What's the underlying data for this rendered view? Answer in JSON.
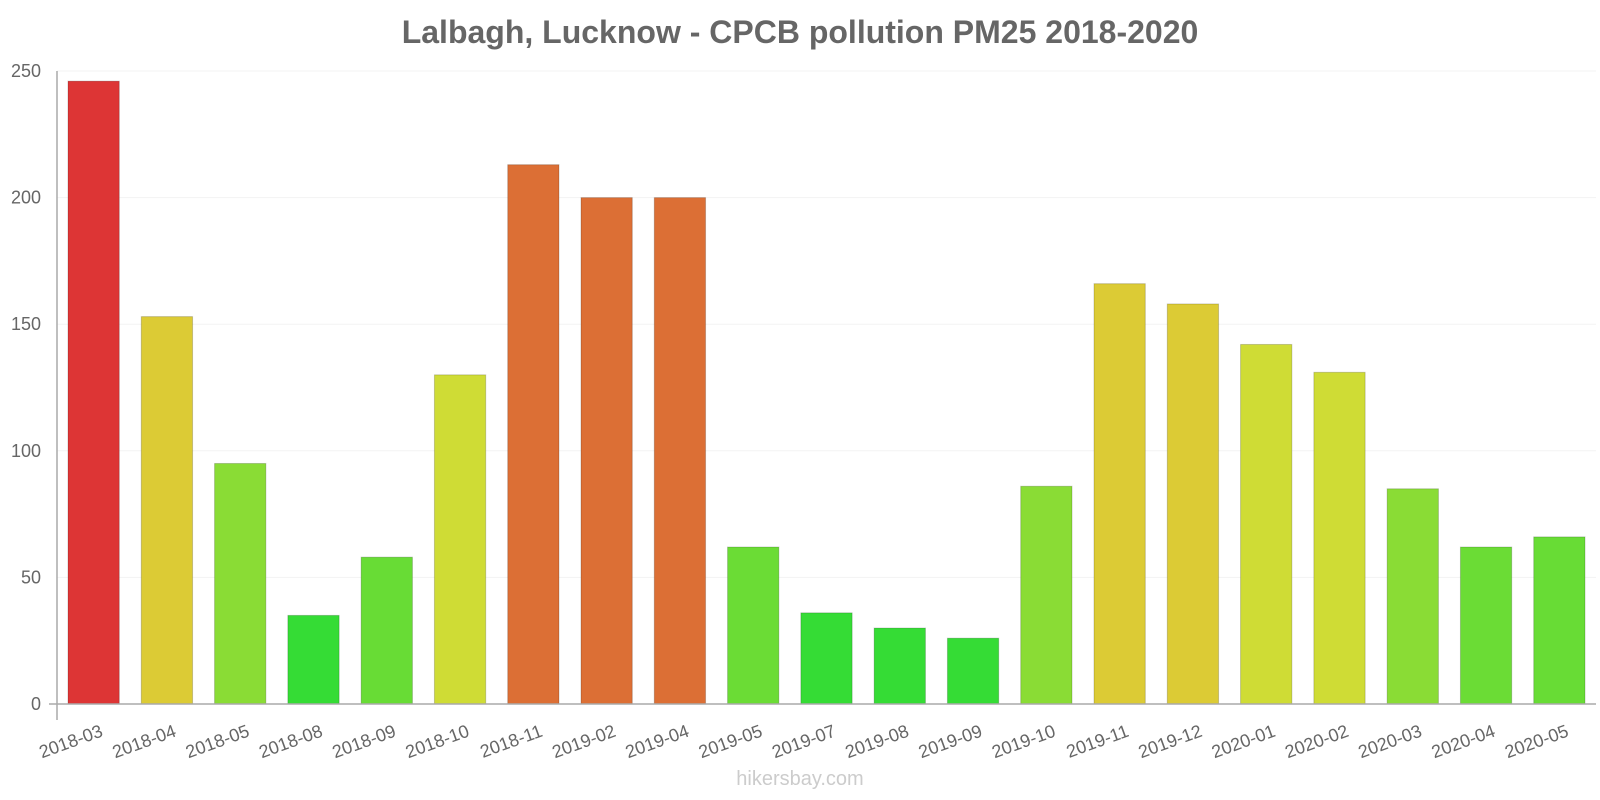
{
  "chart_data": {
    "type": "bar",
    "title": "Lalbagh, Lucknow - CPCB pollution PM25 2018-2020",
    "xlabel": "",
    "ylabel": "",
    "ylim": [
      0,
      250
    ],
    "yticks": [
      0,
      50,
      100,
      150,
      200,
      250
    ],
    "grid": true,
    "categories": [
      "2018-03",
      "2018-04",
      "2018-05",
      "2018-08",
      "2018-09",
      "2018-10",
      "2018-11",
      "2019-02",
      "2019-04",
      "2019-05",
      "2019-07",
      "2019-08",
      "2019-09",
      "2019-10",
      "2019-11",
      "2019-12",
      "2020-01",
      "2020-02",
      "2020-03",
      "2020-04",
      "2020-05"
    ],
    "values": [
      246,
      153,
      95,
      35,
      58,
      130,
      213,
      200,
      200,
      62,
      36,
      30,
      26,
      86,
      166,
      158,
      142,
      131,
      85,
      62,
      66
    ],
    "colors": [
      "#dd3535",
      "#dccb35",
      "#8adc35",
      "#35dc35",
      "#68dc35",
      "#cfdc35",
      "#dc6f35",
      "#dc6f35",
      "#dc6f35",
      "#6bdc35",
      "#35dc35",
      "#35dc35",
      "#35dc35",
      "#8adc35",
      "#dccb35",
      "#dccb35",
      "#cfdc35",
      "#cfdc35",
      "#8adc35",
      "#6bdc35",
      "#68dc35"
    ]
  },
  "watermark": "hikersbay.com"
}
